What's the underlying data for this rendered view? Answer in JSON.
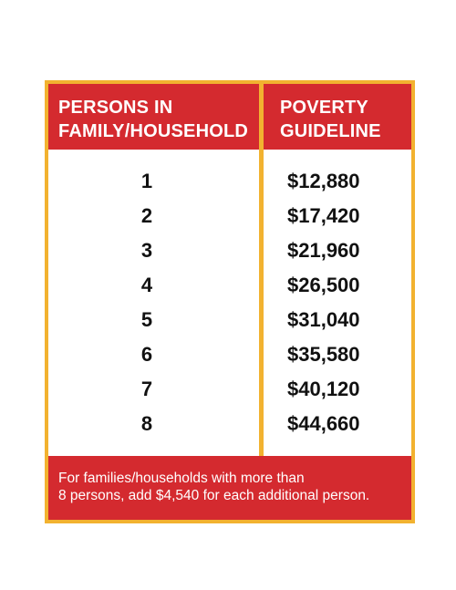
{
  "table": {
    "header": {
      "persons_line1": "PERSONS IN",
      "persons_line2": "FAMILY/HOUSEHOLD",
      "guideline_line1": "POVERTY",
      "guideline_line2": "GUIDELINE"
    },
    "rows": [
      {
        "persons": "1",
        "guideline": "$12,880"
      },
      {
        "persons": "2",
        "guideline": "$17,420"
      },
      {
        "persons": "3",
        "guideline": "$21,960"
      },
      {
        "persons": "4",
        "guideline": "$26,500"
      },
      {
        "persons": "5",
        "guideline": "$31,040"
      },
      {
        "persons": "6",
        "guideline": "$35,580"
      },
      {
        "persons": "7",
        "guideline": "$40,120"
      },
      {
        "persons": "8",
        "guideline": "$44,660"
      }
    ],
    "footer": {
      "line1": "For families/households with more than",
      "line2": "8 persons, add $4,540 for each additional person."
    }
  },
  "colors": {
    "header_bg": "#d42a2f",
    "border": "#f2b230",
    "text_dark": "#111111",
    "text_light": "#ffffff"
  }
}
